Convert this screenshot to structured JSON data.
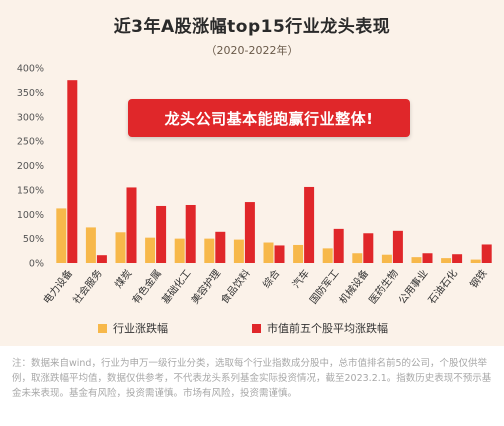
{
  "title": "近3年A股涨幅top15行业龙头表现",
  "subtitle": "（2020-2022年）",
  "banner": "龙头公司基本能跑赢行业整体!",
  "footnote": "注：数据来自wind，行业为申万一级行业分类，选取每个行业指数成分股中，总市值排名前5的公司，个股仅供举例，取涨跌幅平均值，数据仅供参考，不代表龙头系列基金实际投资情况，截至2023.2.1。指数历史表现不预示基金未来表现。基金有风险，投资需谨慎。市场有风险，投资需谨慎。",
  "colors": {
    "industry": "#f7b84a",
    "leaders": "#e0272a",
    "background": "#fbf2e9"
  },
  "chart_data": {
    "type": "bar",
    "categories": [
      "电力设备",
      "社会服务",
      "煤炭",
      "有色金属",
      "基础化工",
      "美容护理",
      "食品饮料",
      "综合",
      "汽车",
      "国防军工",
      "机械设备",
      "医药生物",
      "公用事业",
      "石油石化",
      "钢铁"
    ],
    "series": [
      {
        "name": "行业涨跌幅",
        "color": "#f7b84a",
        "values": [
          112,
          73,
          63,
          52,
          50,
          50,
          48,
          42,
          37,
          30,
          20,
          17,
          12,
          10,
          7
        ]
      },
      {
        "name": "市值前五个股平均涨跌幅",
        "color": "#e0272a",
        "values": [
          375,
          16,
          155,
          117,
          119,
          64,
          125,
          36,
          156,
          70,
          61,
          66,
          20,
          18,
          38
        ]
      }
    ],
    "ylim": [
      0,
      400
    ],
    "yticks": [
      0,
      50,
      100,
      150,
      200,
      250,
      300,
      350,
      400
    ],
    "ytick_suffix": "%",
    "grid": false,
    "legend": "bottom"
  }
}
